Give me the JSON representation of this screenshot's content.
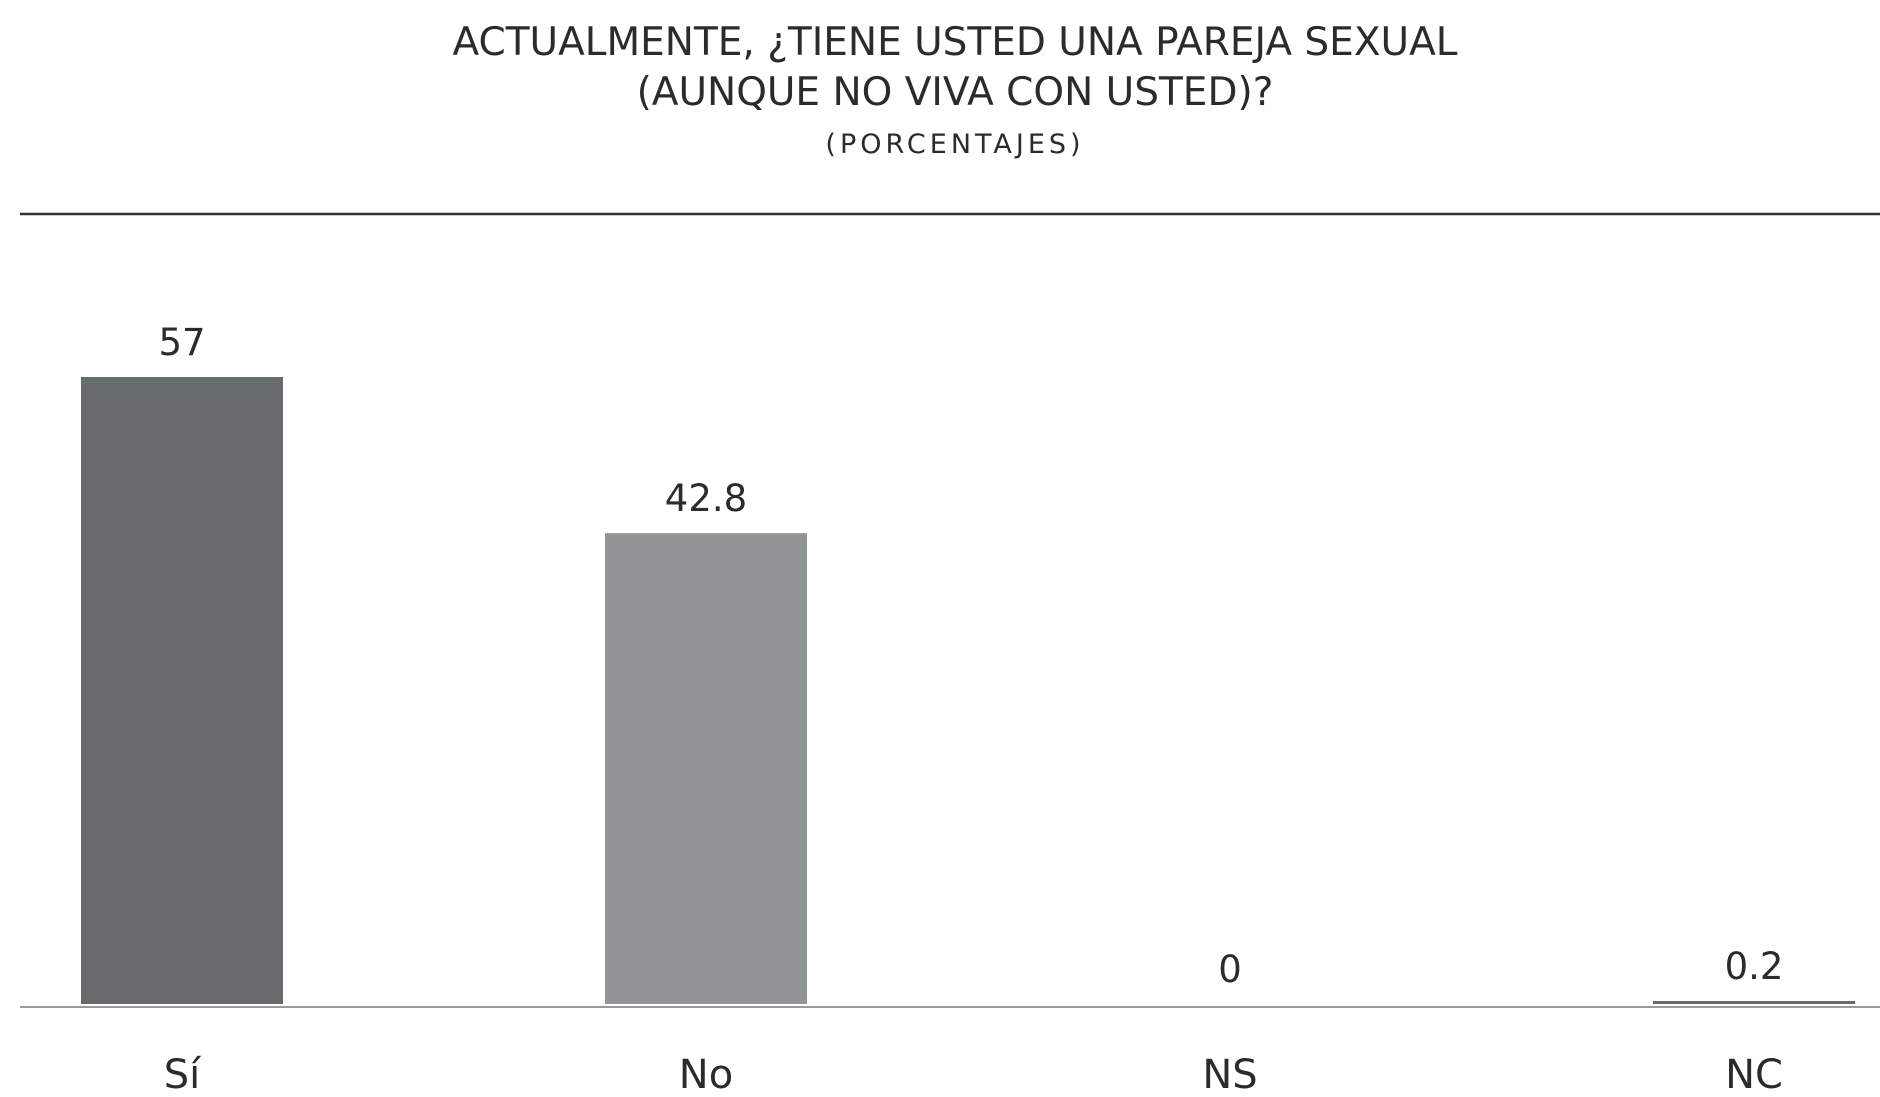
{
  "chart_data": {
    "type": "bar",
    "title_lines": [
      "ACTUALMENTE, ¿TIENE USTED UNA PAREJA SEXUAL",
      "(AUNQUE NO VIVA CON USTED)?"
    ],
    "subtitle": "(PORCENTAJES)",
    "categories": [
      "Sí",
      "No",
      "NS",
      "NC"
    ],
    "values": [
      57,
      42.8,
      0,
      0.2
    ],
    "value_labels": [
      "57",
      "42.8",
      "0",
      "0.2"
    ],
    "colors": [
      "#686b6c",
      "#929596",
      "#929596",
      "#686b6c"
    ],
    "ylim": [
      0,
      57
    ],
    "grid": false,
    "legend": "none"
  }
}
